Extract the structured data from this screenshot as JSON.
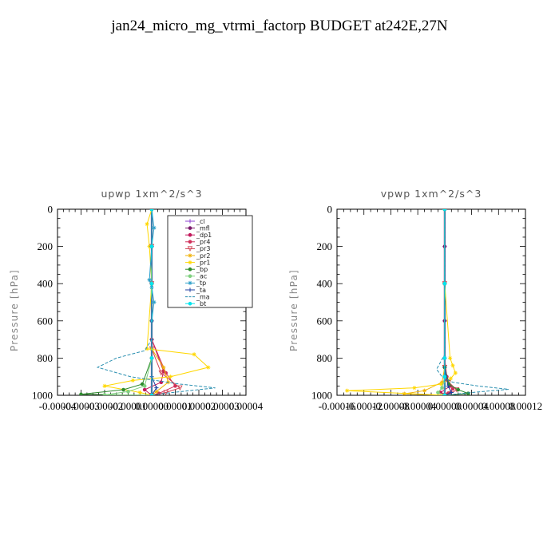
{
  "title": "jan24_micro_mg_vtrmi_factorp  BUDGET at242E,27N",
  "chart_data": [
    {
      "type": "line",
      "title": "upwp   1xm^2/s^3",
      "ylabel": "Pressure [hPa]",
      "xlabel": "",
      "xlim": [
        -4e-05,
        4e-05
      ],
      "ylim": [
        1000,
        0
      ],
      "yticks": [
        0,
        200,
        400,
        600,
        800,
        1000
      ],
      "xtick_labels": [
        "-0.00004",
        "-0.00003",
        "-0.00002",
        "-0.00001",
        "0.00000",
        "0.00001",
        "0.00002",
        "0.00003",
        "0.00004"
      ],
      "legend_position": "top-right",
      "series": [
        {
          "name": "_cl",
          "color": "#8c3fd0",
          "marker": "+",
          "x": [
            0,
            0,
            0,
            0,
            0,
            0
          ],
          "y": [
            0,
            200,
            400,
            600,
            800,
            1000
          ]
        },
        {
          "name": "_mfl",
          "color": "#7a1a6a",
          "marker": "o",
          "x": [
            0,
            0,
            0,
            0,
            0,
            0
          ],
          "y": [
            0,
            200,
            400,
            600,
            800,
            1000
          ]
        },
        {
          "name": "_dp1",
          "color": "#c2185b",
          "marker": "o",
          "x": [
            0,
            0,
            0,
            0,
            5e-06,
            4e-06,
            -3e-06,
            0
          ],
          "y": [
            0,
            200,
            400,
            700,
            870,
            930,
            970,
            1000
          ]
        },
        {
          "name": "_pr4",
          "color": "#d0305a",
          "marker": "o",
          "x": [
            0,
            0,
            0,
            0,
            6e-06,
            1e-05,
            3e-06,
            0
          ],
          "y": [
            0,
            200,
            400,
            700,
            880,
            950,
            990,
            1000
          ]
        },
        {
          "name": "_pr3",
          "color": "#d04050",
          "marker": "v",
          "x": [
            0,
            0,
            0,
            0,
            4e-06,
            1.2e-05,
            6e-06,
            0
          ],
          "y": [
            0,
            200,
            400,
            750,
            880,
            960,
            985,
            1000
          ]
        },
        {
          "name": "_pr2",
          "color": "#f0b000",
          "marker": "*",
          "x": [
            0,
            0,
            0,
            0,
            5e-06,
            7e-06,
            2e-06,
            0
          ],
          "y": [
            0,
            200,
            400,
            750,
            850,
            930,
            980,
            1000
          ]
        },
        {
          "name": "_pr1",
          "color": "#ffd700",
          "marker": "*",
          "x": [
            0,
            -2e-06,
            -1e-06,
            0,
            -2e-06,
            1.8e-05,
            2.4e-05,
            8e-06,
            -8e-06,
            -2e-05,
            -5e-06,
            0
          ],
          "y": [
            0,
            80,
            200,
            400,
            750,
            780,
            850,
            900,
            920,
            950,
            985,
            1000
          ]
        },
        {
          "name": "_bp",
          "color": "#2e8b2e",
          "marker": "o",
          "x": [
            0,
            0,
            0,
            0,
            -4e-06,
            -1.2e-05,
            -3e-05,
            0
          ],
          "y": [
            0,
            200,
            400,
            800,
            940,
            970,
            995,
            1000
          ]
        },
        {
          "name": "_ac",
          "color": "#7fd07f",
          "marker": "o",
          "x": [
            0,
            0,
            0,
            0,
            -3e-06,
            -1e-05,
            -2e-05,
            0
          ],
          "y": [
            0,
            200,
            400,
            800,
            950,
            980,
            998,
            1000
          ]
        },
        {
          "name": "_tp",
          "color": "#2a9fc8",
          "marker": "*",
          "x": [
            0,
            1e-06,
            0,
            -1e-06,
            0,
            1e-06,
            0,
            0
          ],
          "y": [
            0,
            100,
            200,
            380,
            420,
            500,
            600,
            1000
          ]
        },
        {
          "name": "_ta",
          "color": "#1f3fa0",
          "marker": "+",
          "x": [
            0,
            0,
            0,
            0,
            0,
            2e-06,
            0
          ],
          "y": [
            0,
            200,
            400,
            700,
            900,
            960,
            1000
          ]
        },
        {
          "name": "_ma",
          "color": "#2a8fb0",
          "marker": "-",
          "x": [
            0,
            0,
            0,
            -3e-06,
            -1.5e-05,
            -2.3e-05,
            -9e-06,
            1.2e-05,
            2.7e-05,
            5e-06,
            0
          ],
          "y": [
            0,
            200,
            700,
            760,
            800,
            850,
            900,
            940,
            960,
            990,
            1000
          ]
        },
        {
          "name": "_bt",
          "color": "#00e5ee",
          "marker": "o",
          "x": [
            0,
            0,
            0,
            0,
            0
          ],
          "y": [
            0,
            200,
            400,
            800,
            1000
          ]
        }
      ]
    },
    {
      "type": "line",
      "title": "vpwp   1xm^2/s^3",
      "ylabel": "Pressure [hPa]",
      "xlabel": "",
      "xlim": [
        -0.00016,
        0.00012
      ],
      "ylim": [
        1000,
        0
      ],
      "yticks": [
        0,
        200,
        400,
        600,
        800,
        1000
      ],
      "xtick_labels": [
        "-0.00016",
        "-0.00012",
        "-0.00008",
        "-0.00004",
        "0.00000",
        "0.00004",
        "0.00008",
        "0.00012"
      ],
      "series": [
        {
          "name": "_cl",
          "color": "#8c3fd0",
          "marker": "+",
          "x": [
            0,
            0,
            0,
            0,
            0,
            0
          ],
          "y": [
            0,
            200,
            400,
            600,
            800,
            1000
          ]
        },
        {
          "name": "_mfl",
          "color": "#7a1a6a",
          "marker": "o",
          "x": [
            0,
            0,
            0,
            0,
            0,
            0
          ],
          "y": [
            0,
            200,
            400,
            600,
            800,
            1000
          ]
        },
        {
          "name": "_dp1",
          "color": "#c2185b",
          "marker": "o",
          "x": [
            0,
            0,
            0,
            3e-06,
            8e-06,
            -6e-06,
            0
          ],
          "y": [
            0,
            400,
            800,
            900,
            950,
            985,
            1000
          ]
        },
        {
          "name": "_pr4",
          "color": "#d0305a",
          "marker": "o",
          "x": [
            0,
            0,
            0,
            4e-06,
            1.2e-05,
            5e-06,
            0
          ],
          "y": [
            0,
            400,
            850,
            920,
            965,
            990,
            1000
          ]
        },
        {
          "name": "_pr3",
          "color": "#d04050",
          "marker": "v",
          "x": [
            0,
            0,
            0,
            6e-06,
            1.8e-05,
            8e-06,
            0
          ],
          "y": [
            0,
            400,
            850,
            930,
            970,
            992,
            1000
          ]
        },
        {
          "name": "_pr2",
          "color": "#f0b000",
          "marker": "*",
          "x": [
            0,
            0,
            0,
            -4e-06,
            -3e-05,
            -6e-05,
            0
          ],
          "y": [
            0,
            400,
            850,
            930,
            975,
            992,
            1000
          ]
        },
        {
          "name": "_pr1",
          "color": "#ffd700",
          "marker": "*",
          "x": [
            0,
            0,
            8e-06,
            1.2e-05,
            1.6e-05,
            9e-06,
            -5e-06,
            -4.5e-05,
            -0.000145,
            0
          ],
          "y": [
            0,
            400,
            800,
            840,
            880,
            910,
            940,
            960,
            975,
            1000
          ]
        },
        {
          "name": "_bp",
          "color": "#2e8b2e",
          "marker": "o",
          "x": [
            0,
            0,
            0,
            6e-06,
            2e-05,
            3.5e-05,
            0
          ],
          "y": [
            0,
            400,
            850,
            940,
            970,
            990,
            1000
          ]
        },
        {
          "name": "_ac",
          "color": "#7fd07f",
          "marker": "o",
          "x": [
            0,
            0,
            0,
            -4e-06,
            -1e-05,
            0
          ],
          "y": [
            0,
            400,
            900,
            960,
            985,
            1000
          ]
        },
        {
          "name": "_tp",
          "color": "#2a9fc8",
          "marker": "*",
          "x": [
            0,
            0,
            0,
            0,
            0
          ],
          "y": [
            0,
            400,
            800,
            900,
            1000
          ]
        },
        {
          "name": "_ta",
          "color": "#1f3fa0",
          "marker": "+",
          "x": [
            0,
            0,
            0,
            5e-06,
            1e-05,
            0
          ],
          "y": [
            0,
            400,
            850,
            950,
            985,
            1000
          ]
        },
        {
          "name": "_ma",
          "color": "#2a8fb0",
          "marker": "-",
          "x": [
            0,
            0,
            0,
            -6e-06,
            -1.2e-05,
            -4e-06,
            1.2e-05,
            5e-05,
            9.5e-05,
            4e-05,
            0
          ],
          "y": [
            0,
            600,
            780,
            820,
            860,
            900,
            930,
            950,
            968,
            985,
            1000
          ]
        },
        {
          "name": "_bt",
          "color": "#00e5ee",
          "marker": "o",
          "x": [
            0,
            0,
            0,
            0,
            0
          ],
          "y": [
            0,
            400,
            800,
            900,
            1000
          ]
        }
      ]
    }
  ]
}
